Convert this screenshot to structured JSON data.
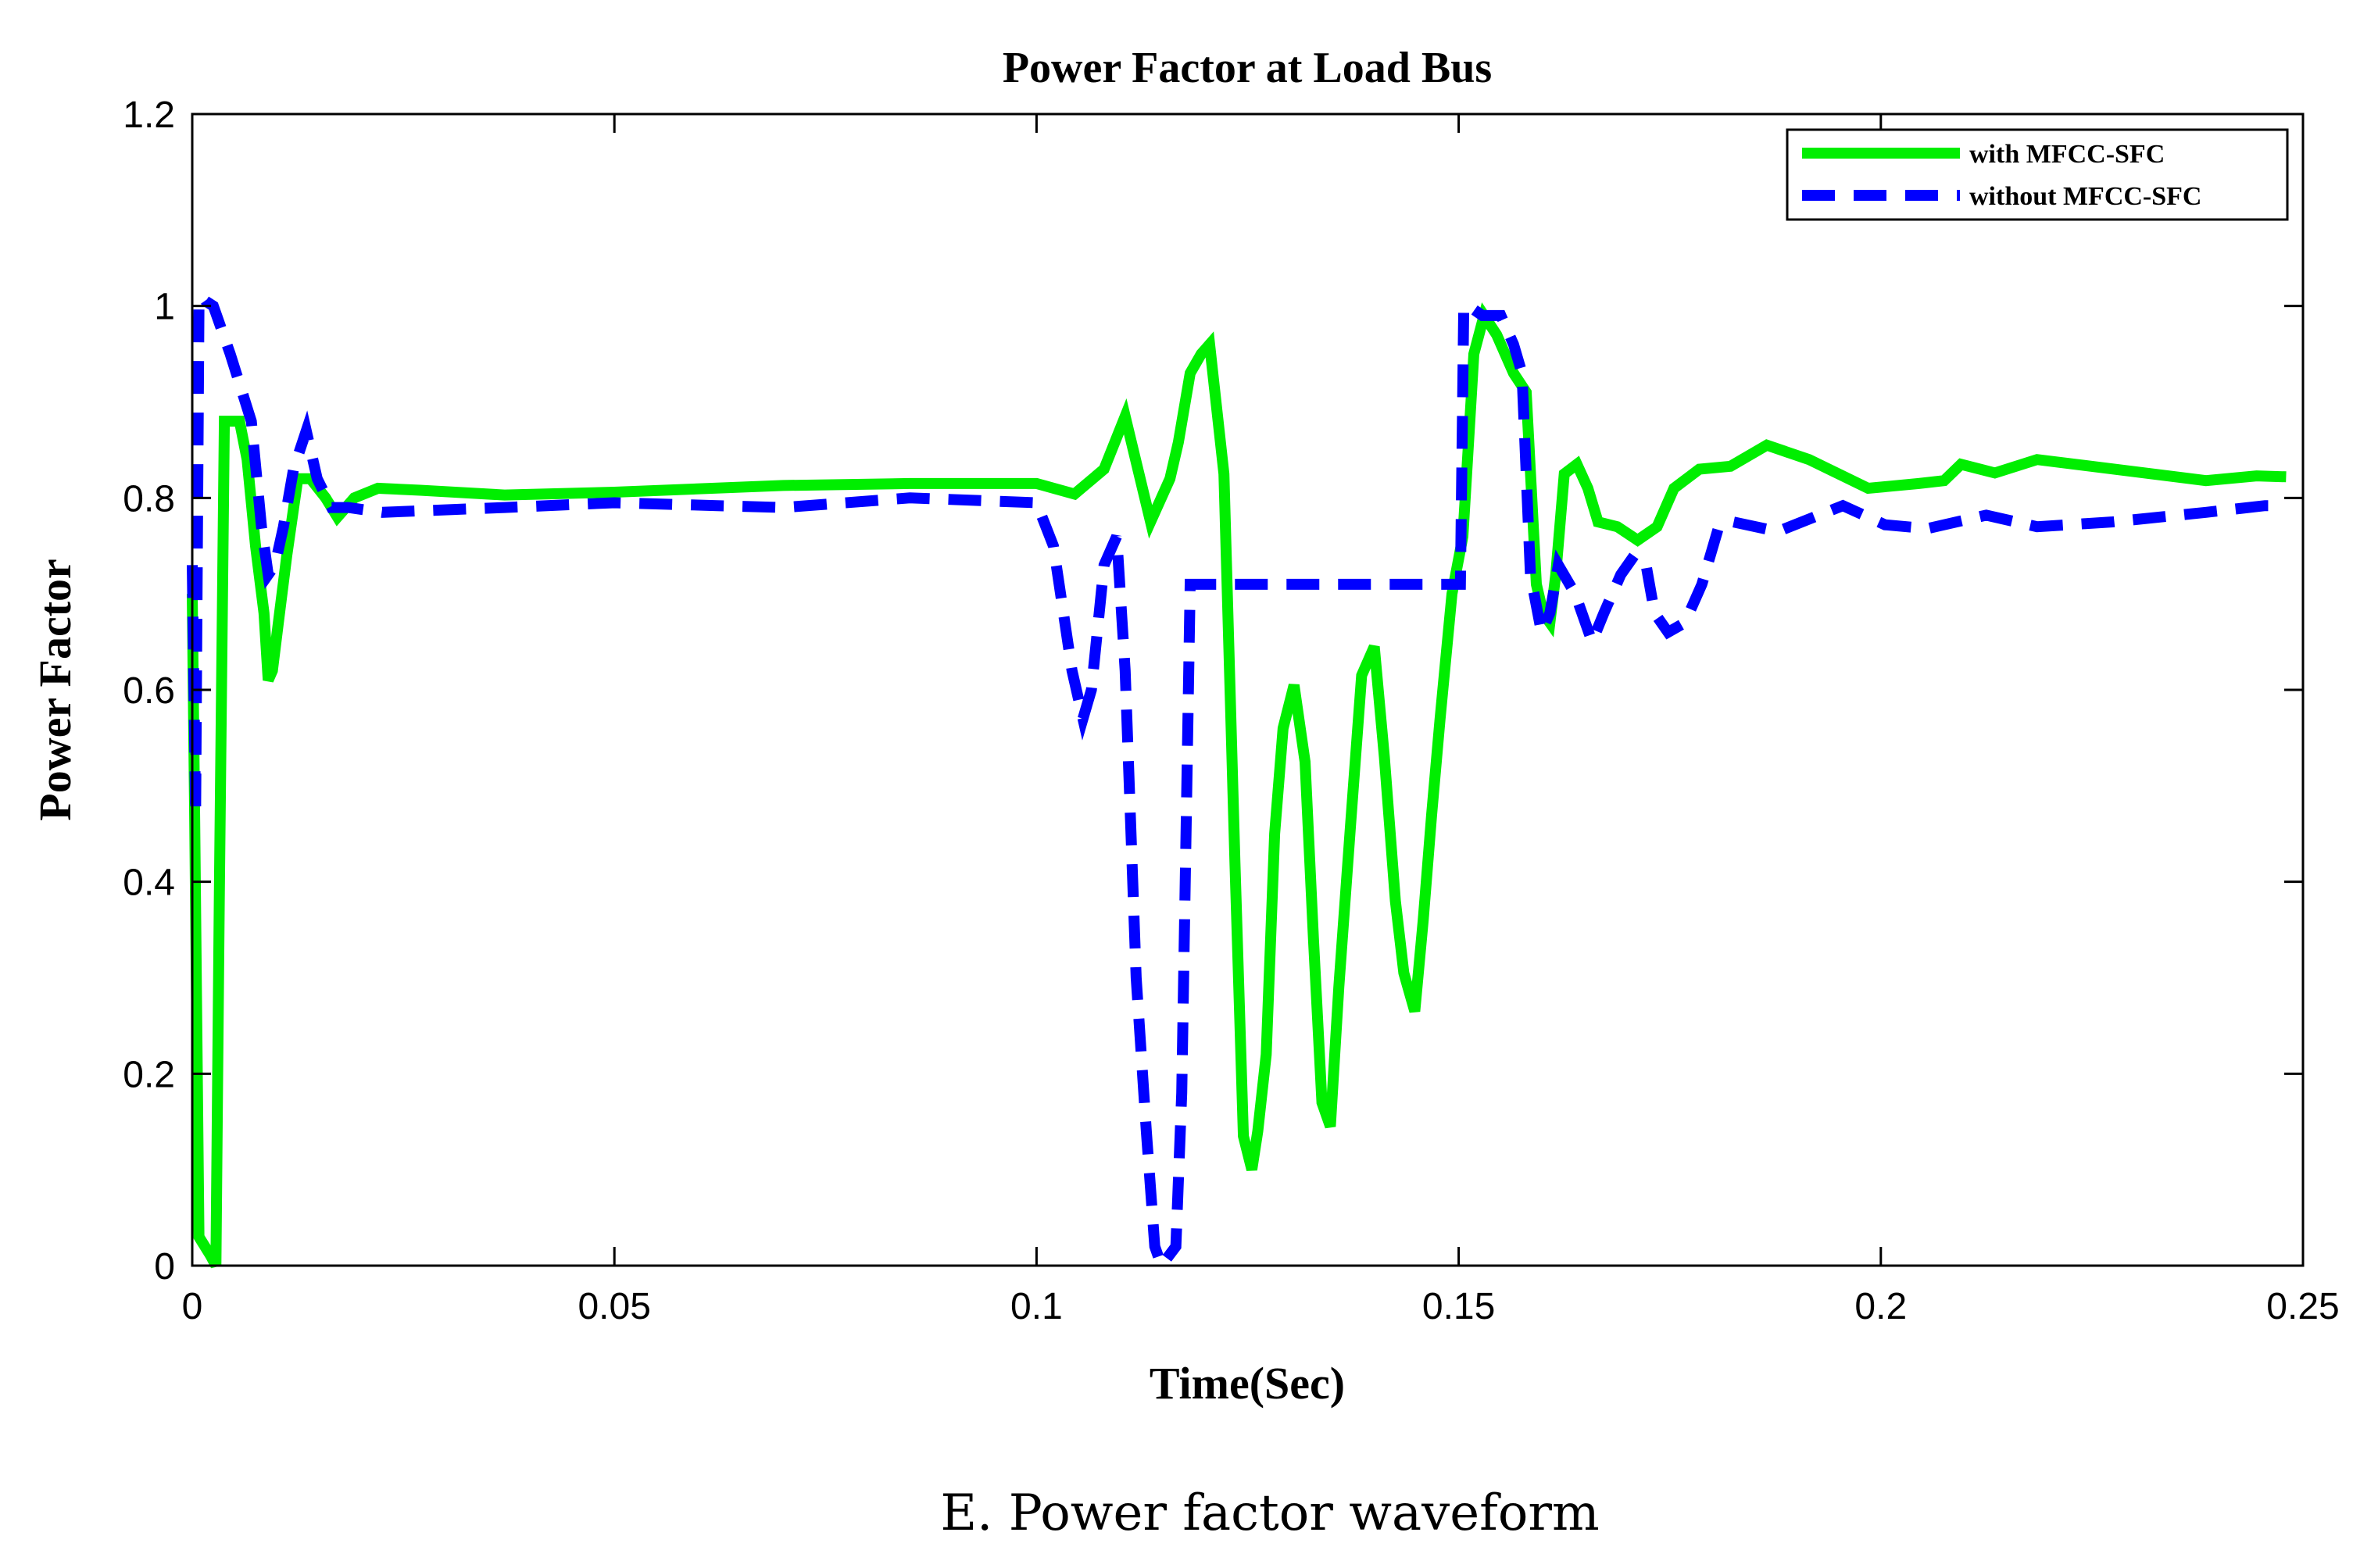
{
  "chart_data": {
    "type": "line",
    "title": "Power Factor at Load Bus",
    "xlabel": "Time(Sec)",
    "ylabel": "Power Factor",
    "xlim": [
      0,
      0.25
    ],
    "ylim": [
      0,
      1.2
    ],
    "xticks": [
      0,
      0.05,
      0.1,
      0.15,
      0.2,
      0.25
    ],
    "xtick_labels": [
      "0",
      "0.05",
      "0.1",
      "0.15",
      "0.2",
      "0.25"
    ],
    "yticks": [
      0,
      0.2,
      0.4,
      0.6,
      0.8,
      1,
      1.2
    ],
    "ytick_labels": [
      "0",
      "0.2",
      "0.4",
      "0.6",
      "0.8",
      "1",
      "1.2"
    ],
    "grid": false,
    "legend_position": "top-right",
    "series": [
      {
        "name": "with MFCC-SFC",
        "color": "#00ee00",
        "style": "solid",
        "x": [
          0,
          0.0003,
          0.0008,
          0.0015,
          0.0022,
          0.0028,
          0.0032,
          0.0038,
          0.0045,
          0.005,
          0.0056,
          0.0065,
          0.0075,
          0.0085,
          0.009,
          0.0095,
          0.0102,
          0.0112,
          0.0125,
          0.014,
          0.0158,
          0.0172,
          0.0192,
          0.022,
          0.027,
          0.037,
          0.05,
          0.07,
          0.085,
          0.1,
          0.1045,
          0.108,
          0.1105,
          0.1135,
          0.1158,
          0.1168,
          0.1182,
          0.1195,
          0.1205,
          0.1222,
          0.1235,
          0.1245,
          0.1255,
          0.1262,
          0.1272,
          0.1282,
          0.1292,
          0.1305,
          0.1318,
          0.1328,
          0.1338,
          0.1348,
          0.1358,
          0.1372,
          0.1385,
          0.14,
          0.1412,
          0.1425,
          0.1435,
          0.1448,
          0.1458,
          0.1468,
          0.1478,
          0.1492,
          0.1505,
          0.1518,
          0.153,
          0.1545,
          0.1565,
          0.158,
          0.1592,
          0.16,
          0.1608,
          0.1615,
          0.1625,
          0.164,
          0.1653,
          0.1665,
          0.1688,
          0.1712,
          0.1735,
          0.1755,
          0.1785,
          0.1822,
          0.1865,
          0.1915,
          0.1985,
          0.2045,
          0.2075,
          0.2095,
          0.2135,
          0.2185,
          0.2385,
          0.2445,
          0.248
        ],
        "values": [
          0.7,
          0.46,
          0.03,
          0.02,
          0.01,
          0.0,
          0.38,
          0.88,
          0.88,
          0.88,
          0.88,
          0.84,
          0.75,
          0.68,
          0.61,
          0.62,
          0.67,
          0.74,
          0.82,
          0.82,
          0.8,
          0.78,
          0.8,
          0.81,
          0.808,
          0.803,
          0.806,
          0.813,
          0.815,
          0.815,
          0.804,
          0.83,
          0.885,
          0.775,
          0.82,
          0.858,
          0.93,
          0.95,
          0.96,
          0.825,
          0.42,
          0.135,
          0.1,
          0.14,
          0.22,
          0.45,
          0.56,
          0.605,
          0.525,
          0.34,
          0.17,
          0.145,
          0.29,
          0.46,
          0.615,
          0.645,
          0.53,
          0.38,
          0.305,
          0.265,
          0.36,
          0.47,
          0.57,
          0.7,
          0.76,
          0.95,
          0.99,
          0.97,
          0.93,
          0.91,
          0.71,
          0.68,
          0.67,
          0.72,
          0.825,
          0.835,
          0.81,
          0.775,
          0.77,
          0.756,
          0.77,
          0.81,
          0.83,
          0.833,
          0.855,
          0.84,
          0.81,
          0.815,
          0.818,
          0.835,
          0.826,
          0.84,
          0.818,
          0.823,
          0.822
        ]
      },
      {
        "name": "without MFCC-SFC",
        "color": "#0000ff",
        "style": "dashed",
        "x": [
          0,
          0.0004,
          0.0008,
          0.0012,
          0.0016,
          0.0025,
          0.0045,
          0.007,
          0.0082,
          0.009,
          0.0098,
          0.0108,
          0.012,
          0.0135,
          0.0148,
          0.0165,
          0.0185,
          0.0225,
          0.037,
          0.05,
          0.07,
          0.085,
          0.1,
          0.102,
          0.1042,
          0.1055,
          0.1065,
          0.108,
          0.1095,
          0.1105,
          0.1118,
          0.113,
          0.114,
          0.1148,
          0.1165,
          0.1172,
          0.1182,
          0.1195,
          0.13,
          0.145,
          0.1502,
          0.1506,
          0.1512,
          0.1528,
          0.155,
          0.1565,
          0.1575,
          0.1585,
          0.1598,
          0.1608,
          0.1618,
          0.1638,
          0.1658,
          0.1672,
          0.1692,
          0.1708,
          0.1722,
          0.1732,
          0.1748,
          0.1768,
          0.1788,
          0.1808,
          0.1825,
          0.1878,
          0.1955,
          0.2005,
          0.2055,
          0.2125,
          0.2185,
          0.2275,
          0.2385,
          0.2455,
          0.248
        ],
        "values": [
          0.73,
          0.47,
          1.0,
          1.01,
          1.005,
          1.0,
          0.95,
          0.88,
          0.77,
          0.72,
          0.73,
          0.77,
          0.83,
          0.87,
          0.82,
          0.79,
          0.79,
          0.785,
          0.79,
          0.795,
          0.79,
          0.8,
          0.795,
          0.75,
          0.62,
          0.57,
          0.6,
          0.73,
          0.76,
          0.62,
          0.3,
          0.14,
          0.02,
          0.0,
          0.02,
          0.18,
          0.71,
          0.71,
          0.71,
          0.71,
          0.71,
          1.0,
          1.0,
          0.99,
          0.99,
          0.96,
          0.93,
          0.72,
          0.66,
          0.68,
          0.73,
          0.7,
          0.65,
          0.68,
          0.72,
          0.74,
          0.73,
          0.68,
          0.66,
          0.67,
          0.71,
          0.77,
          0.775,
          0.765,
          0.792,
          0.772,
          0.768,
          0.782,
          0.77,
          0.775,
          0.785,
          0.792,
          0.792
        ]
      }
    ]
  },
  "caption": "E. Power factor waveform"
}
